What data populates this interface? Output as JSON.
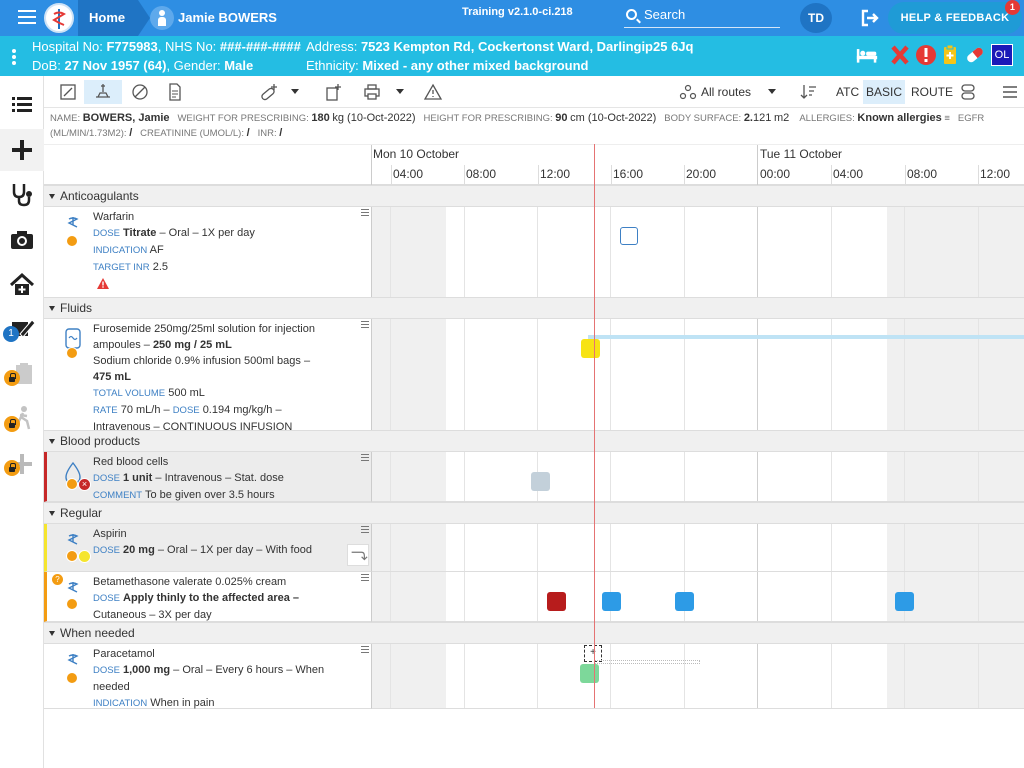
{
  "topbar": {
    "home_label": "Home",
    "patient_name": "Jamie BOWERS",
    "version": "Training v2.1.0-ci.218",
    "search_label": "Search",
    "user_initials": "TD",
    "help_label": "HELP & FEEDBACK",
    "help_count": "1"
  },
  "banner": {
    "hospital_label": "Hospital No:",
    "hospital_no": "F775983",
    "nhs_label": "NHS No:",
    "nhs_no": "###-###-####",
    "dob_label": "DoB:",
    "dob": "27 Nov 1957 (64)",
    "gender_label": "Gender:",
    "gender": "Male",
    "address_label": "Address:",
    "address": "7523 Kempton Rd, Cockertonst Ward, Darlingip25 6Jq",
    "ethnicity_label": "Ethnicity:",
    "ethnicity": "Mixed - any other mixed background",
    "badge_ol": "OL"
  },
  "leftnav": {
    "notification_count": "1"
  },
  "toolbar": {
    "routes_label": "All routes",
    "atc_label": "ATC",
    "basic_label": "BASIC",
    "route_label": "ROUTE"
  },
  "patient_info": {
    "name_label": "NAME:",
    "name": "BOWERS, Jamie",
    "weight_label": "WEIGHT FOR PRESCRIBING:",
    "weight_value": "180",
    "weight_unit": "kg (10-Oct-2022)",
    "height_label": "HEIGHT FOR PRESCRIBING:",
    "height_value": "90",
    "height_unit": "cm (10-Oct-2022)",
    "bsa_label": "BODY SURFACE:",
    "bsa_value": "2.",
    "bsa_value2": "121",
    "bsa_unit": "m2",
    "allergies_label": "ALLERGIES:",
    "allergies_value": "Known allergies",
    "egfr_label": "EGFR",
    "egfr_unit": "(ML/MIN/1.73M2):",
    "egfr_value": "/",
    "creat_label": "CREATININE (UMOL/L):",
    "creat_value": "/",
    "inr_label": "INR:",
    "inr_value": "/"
  },
  "timeline": {
    "days": [
      "Mon 10 October",
      "Tue 11 October"
    ],
    "times": [
      "04:00",
      "08:00",
      "12:00",
      "16:00",
      "20:00",
      "00:00",
      "04:00",
      "08:00",
      "12:00"
    ]
  },
  "sections": {
    "anticoagulants": "Anticoagulants",
    "fluids": "Fluids",
    "blood": "Blood products",
    "regular": "Regular",
    "when_needed": "When needed"
  },
  "meds": {
    "warfarin": {
      "name": "Warfarin",
      "dose_label": "DOSE",
      "dose": "Titrate",
      "dose_rest": " – Oral – 1X per day",
      "ind_label": "INDICATION",
      "indication": "AF",
      "inr_label": "TARGET INR",
      "inr": "2.5"
    },
    "furosemide": {
      "line1": "Furosemide 250mg/25ml solution for injection",
      "line2a": "ampoules – ",
      "line2b": "250 mg / 25 mL",
      "line3": "Sodium chloride 0.9% infusion 500ml bags –",
      "line4": "475 mL",
      "vol_label": "TOTAL VOLUME",
      "volume": "500 mL",
      "rate_label": "RATE",
      "rate": "70 mL/h – ",
      "dose_label": "DOSE",
      "dose": "0.194 mg/kg/h –",
      "line7": "Intravenous – CONTINUOUS INFUSION"
    },
    "rbc": {
      "name": "Red blood cells",
      "dose_label": "DOSE",
      "dose": "1 unit",
      "dose_rest": " – Intravenous – Stat. dose",
      "comment_label": "COMMENT",
      "comment": "To be given over 3.5 hours"
    },
    "aspirin": {
      "name": "Aspirin",
      "dose_label": "DOSE",
      "dose": "20 mg",
      "dose_rest": " – Oral – 1X per day – With food"
    },
    "betamethasone": {
      "name": "Betamethasone valerate 0.025% cream",
      "dose_label": "DOSE",
      "dose": "Apply thinly to the affected area –",
      "line3": "Cutaneous – 3X per day"
    },
    "paracetamol": {
      "name": "Paracetamol",
      "dose_label": "DOSE",
      "dose": "1,000 mg",
      "dose_rest": " – Oral – Every 6 hours – When",
      "line3": "needed",
      "ind_label": "INDICATION",
      "indication": "When in pain"
    }
  },
  "colors": {
    "topbar": "#2e8ee3",
    "banner": "#24bde3",
    "dose_blue": "#2d9be6",
    "dose_red": "#b71c1c",
    "dose_yellow": "#f7e314",
    "dose_green": "#7dd89a",
    "dose_grey": "#c3d0da"
  }
}
